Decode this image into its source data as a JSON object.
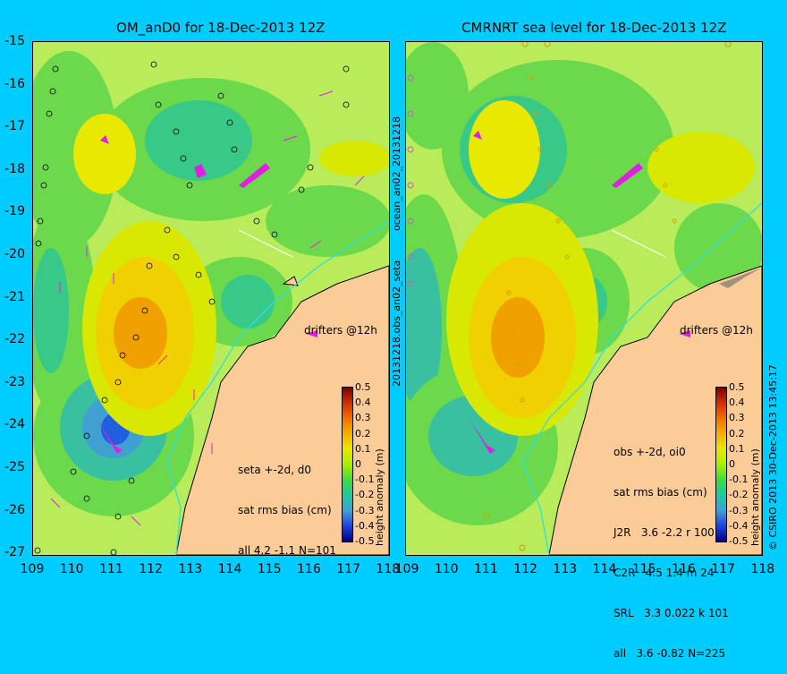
{
  "left_title": "OM_anD0 for 18-Dec-2013 12Z",
  "right_title": "CMRNRT sea level  for 18-Dec-2013 12Z",
  "lat_ticks": [
    "-15",
    "-16",
    "-17",
    "-18",
    "-19",
    "-20",
    "-21",
    "-22",
    "-23",
    "-24",
    "-25",
    "-26",
    "-27"
  ],
  "lon_ticks": [
    "109",
    "110",
    "111",
    "112",
    "113",
    "114",
    "115",
    "116",
    "117",
    "118"
  ],
  "left_stats": {
    "line1": "seta +-2d, d0",
    "line2": "sat rms bias (cm)",
    "line3": "all 4.2 -1.1 N=101"
  },
  "right_stats": {
    "line1": "obs +-2d, oi0",
    "line2": "sat rms bias (cm)",
    "line3": "J2R   3.6 -2.2 r 100",
    "line4": "C2R   4.5 1.4 m 24",
    "line5": "SRL   3.3 0.022 k 101",
    "line6": "all   3.6 -0.82 N=225"
  },
  "drifters_label": "drifters @12h",
  "colorbar": {
    "ticks": [
      "0.5",
      "0.4",
      "0.3",
      "0.2",
      "0.1",
      "0",
      "-0.1",
      "-0.2",
      "-0.3",
      "-0.4",
      "-0.5"
    ],
    "label": "height anomaly (m)"
  },
  "side_label": "20131218.obs_an02_seta",
  "side_label_top": "ocean_an02_20131218",
  "copyright": "© CSIRO 2013   30-Dec-2013 13:45:17",
  "colors": {
    "background": "#00ccff",
    "land": "#fccc98",
    "drifter": "#e020e0",
    "coast_current": "#30e0e0"
  }
}
